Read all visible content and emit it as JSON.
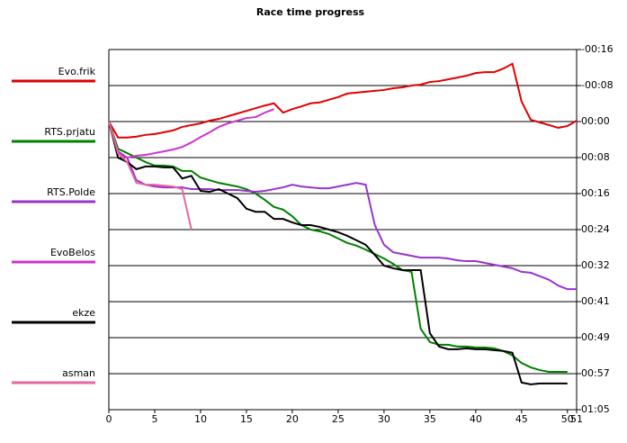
{
  "chart_data": {
    "type": "line",
    "title": "Race time progress",
    "x": [
      0,
      1,
      2,
      3,
      4,
      5,
      6,
      7,
      8,
      9,
      10,
      11,
      12,
      13,
      14,
      15,
      16,
      17,
      18,
      19,
      20,
      21,
      22,
      23,
      24,
      25,
      26,
      27,
      28,
      29,
      30,
      31,
      32,
      33,
      34,
      35,
      36,
      37,
      38,
      39,
      40,
      41,
      42,
      43,
      44,
      45,
      46,
      47,
      48,
      49,
      50,
      51
    ],
    "xlim": [
      0,
      51
    ],
    "xticks": [
      0,
      5,
      10,
      15,
      20,
      25,
      30,
      35,
      40,
      45,
      50,
      51
    ],
    "ylim": [
      -16.2,
      64.8
    ],
    "y_inverted": true,
    "yticks": [
      {
        "value": -16.2,
        "label": "-00:16"
      },
      {
        "value": -8.1,
        "label": "-00:08"
      },
      {
        "value": 0,
        "label": "00:00"
      },
      {
        "value": 8.1,
        "label": "00:08"
      },
      {
        "value": 16.2,
        "label": "00:16"
      },
      {
        "value": 24.3,
        "label": "00:24"
      },
      {
        "value": 32.4,
        "label": "00:32"
      },
      {
        "value": 40.5,
        "label": "00:41"
      },
      {
        "value": 48.6,
        "label": "00:49"
      },
      {
        "value": 56.7,
        "label": "00:57"
      },
      {
        "value": 64.8,
        "label": "01:05"
      }
    ],
    "grid": true,
    "legend": "left",
    "series": [
      {
        "name": "Evo.frik",
        "color": "#e00000",
        "values": [
          0,
          3.6,
          3.6,
          3.4,
          3.0,
          2.8,
          2.4,
          2.0,
          1.2,
          0.8,
          0.4,
          -0.2,
          -0.6,
          -1.2,
          -1.8,
          -2.4,
          -3.0,
          -3.6,
          -4.1,
          -2.0,
          -2.8,
          -3.4,
          -4.1,
          -4.3,
          -4.9,
          -5.5,
          -6.3,
          -6.5,
          -6.7,
          -6.9,
          -7.1,
          -7.5,
          -7.7,
          -8.1,
          -8.3,
          -8.9,
          -9.1,
          -9.5,
          -9.9,
          -10.3,
          -10.9,
          -11.1,
          -11.1,
          -11.9,
          -13.0,
          -4.5,
          -0.4,
          0.2,
          0.8,
          1.4,
          1.0,
          -0.2
        ]
      },
      {
        "name": "RTS.prjatu",
        "color": "#008000",
        "values": [
          0,
          6.1,
          7.1,
          8.1,
          9.1,
          9.9,
          9.9,
          10.1,
          11.1,
          11.1,
          12.6,
          13.2,
          13.8,
          14.2,
          14.6,
          15.2,
          16.2,
          17.6,
          19.2,
          19.8,
          21.3,
          23.3,
          24.3,
          24.7,
          25.3,
          26.3,
          27.3,
          27.9,
          28.8,
          29.8,
          30.8,
          32.0,
          33.4,
          33.8,
          46.6,
          49.6,
          50.2,
          50.2,
          50.6,
          50.6,
          50.8,
          50.8,
          51.0,
          51.6,
          52.6,
          54.3,
          55.3,
          55.9,
          56.3,
          56.3,
          56.3,
          null
        ]
      },
      {
        "name": "RTS.Polde",
        "color": "#9933cc",
        "values": [
          0,
          6.7,
          8.1,
          13.2,
          14.2,
          14.6,
          14.8,
          14.8,
          14.8,
          15.2,
          15.2,
          15.2,
          15.4,
          15.4,
          15.4,
          15.6,
          15.8,
          15.6,
          15.2,
          14.8,
          14.2,
          14.6,
          14.8,
          15.0,
          15.0,
          14.6,
          14.2,
          13.8,
          14.2,
          23.3,
          27.7,
          29.4,
          29.8,
          30.2,
          30.6,
          30.6,
          30.6,
          30.8,
          31.2,
          31.4,
          31.4,
          31.8,
          32.2,
          32.6,
          33.0,
          33.8,
          34.0,
          34.8,
          35.6,
          36.9,
          37.7,
          37.7
        ]
      },
      {
        "name": "EvoBelos",
        "color": "#cc33cc",
        "values": [
          0,
          7.1,
          8.1,
          7.7,
          7.5,
          7.1,
          6.7,
          6.3,
          5.7,
          4.7,
          3.5,
          2.4,
          1.2,
          0.4,
          -0.2,
          -0.8,
          -1.0,
          -2.0,
          -2.8,
          null,
          null,
          null,
          null,
          null,
          null,
          null,
          null,
          null,
          null,
          null,
          null,
          null,
          null,
          null,
          null,
          null,
          null,
          null,
          null,
          null,
          null,
          null,
          null,
          null,
          null,
          null,
          null,
          null,
          null,
          null,
          null,
          null
        ]
      },
      {
        "name": "ekze",
        "color": "#000000",
        "values": [
          0,
          8.1,
          9.1,
          10.7,
          10.1,
          10.1,
          10.3,
          10.3,
          12.8,
          12.2,
          15.6,
          15.8,
          15.2,
          16.2,
          17.2,
          19.6,
          20.3,
          20.3,
          21.9,
          21.9,
          22.7,
          23.3,
          23.3,
          23.7,
          24.3,
          24.9,
          25.7,
          26.7,
          27.7,
          30.0,
          32.4,
          33.0,
          33.4,
          33.4,
          33.4,
          47.6,
          50.6,
          51.2,
          51.2,
          51.0,
          51.2,
          51.2,
          51.4,
          51.6,
          52.0,
          58.7,
          59.1,
          58.9,
          58.9,
          58.9,
          58.9,
          null
        ]
      },
      {
        "name": "asman",
        "color": "#e8669e",
        "values": [
          0,
          7.1,
          9.1,
          13.8,
          14.2,
          14.2,
          14.4,
          14.6,
          15.2,
          24.3,
          null,
          null,
          null,
          null,
          null,
          null,
          null,
          null,
          null,
          null,
          null,
          null,
          null,
          null,
          null,
          null,
          null,
          null,
          null,
          null,
          null,
          null,
          null,
          null,
          null,
          null,
          null,
          null,
          null,
          null,
          null,
          null,
          null,
          null,
          null,
          null,
          null,
          null,
          null,
          null,
          null,
          null
        ]
      }
    ]
  }
}
